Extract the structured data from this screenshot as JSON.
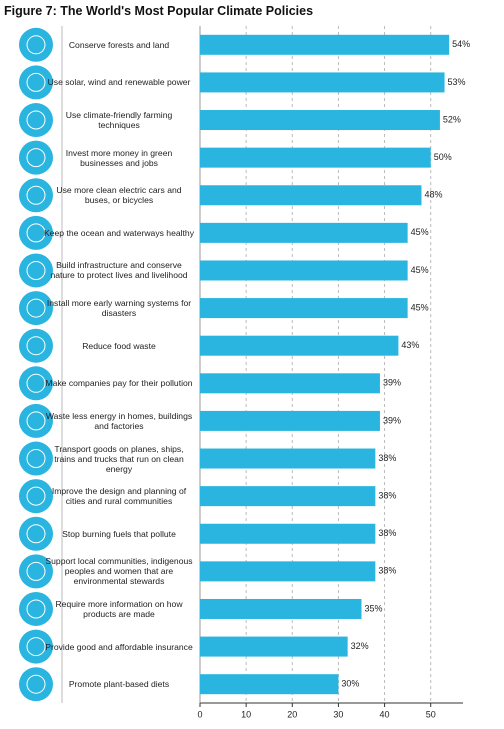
{
  "chart_data": {
    "type": "bar",
    "orientation": "horizontal",
    "title": "Figure 7: The World's Most Popular Climate Policies",
    "categories": [
      "Conserve forests and land",
      "Use solar, wind and renewable power",
      "Use climate-friendly farming techniques",
      "Invest more money in green businesses and jobs",
      "Use more clean electric cars and buses, or bicycles",
      "Keep the ocean and waterways healthy",
      "Build infrastructure and conserve nature to protect lives and livelihood",
      "Install more early warning systems for disasters",
      "Reduce food waste",
      "Make companies pay for their pollution",
      "Waste less energy in homes, buildings and factories",
      "Transport goods on planes, ships, trains and trucks that run on clean energy",
      "Improve the design and planning of cities and rural communities",
      "Stop burning fuels that pollute",
      "Support local communities, indigenous peoples and women that are environmental stewards",
      "Require more information on how products are made",
      "Provide good and affordable insurance",
      "Promote plant-based diets"
    ],
    "values": [
      54,
      53,
      52,
      50,
      48,
      45,
      45,
      45,
      43,
      39,
      39,
      38,
      38,
      38,
      38,
      35,
      32,
      30
    ],
    "value_labels": [
      "54%",
      "53%",
      "52%",
      "50%",
      "48%",
      "45%",
      "45%",
      "45%",
      "43%",
      "39%",
      "39%",
      "38%",
      "38%",
      "38%",
      "38%",
      "35%",
      "32%",
      "30%"
    ],
    "color": "#29b5e0",
    "xlim": [
      0,
      57
    ],
    "xticks": [
      0,
      10,
      20,
      30,
      40,
      50
    ],
    "grid": true
  }
}
